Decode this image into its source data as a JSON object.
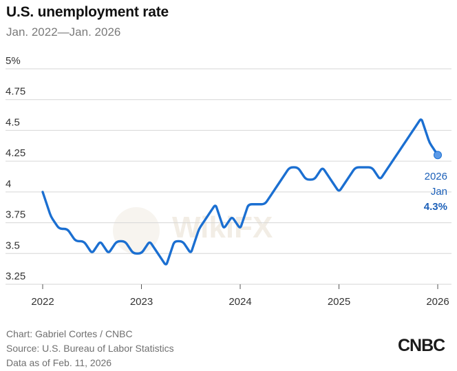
{
  "title": "U.S. unemployment rate",
  "subtitle": "Jan. 2022—Jan. 2026",
  "footer": {
    "credit": "Chart: Gabriel Cortes / CNBC",
    "source": "Source: U.S. Bureau of Labor Statistics",
    "date": "Data as of Feb. 11, 2026"
  },
  "logo": "CNBC",
  "watermark": "WikiFX",
  "colors": {
    "line": "#1b6fd1",
    "annotation": "#1b5fb8",
    "grid": "#d6d6d6",
    "axis_text": "#333333",
    "watermark": "#e8e0d0"
  },
  "chart_data": {
    "type": "line",
    "ylim": [
      3.25,
      5
    ],
    "xlim": [
      2022,
      2026
    ],
    "y_ticks": [
      {
        "value": 5,
        "label": "5%"
      },
      {
        "value": 4.75,
        "label": "4.75"
      },
      {
        "value": 4.5,
        "label": "4.5"
      },
      {
        "value": 4.25,
        "label": "4.25"
      },
      {
        "value": 4,
        "label": "4"
      },
      {
        "value": 3.75,
        "label": "3.75"
      },
      {
        "value": 3.5,
        "label": "3.5"
      },
      {
        "value": 3.25,
        "label": "3.25"
      }
    ],
    "x_ticks": [
      {
        "value": 2022,
        "label": "2022"
      },
      {
        "value": 2023,
        "label": "2023"
      },
      {
        "value": 2024,
        "label": "2024"
      },
      {
        "value": 2025,
        "label": "2025"
      },
      {
        "value": 2026,
        "label": "2026"
      }
    ],
    "series": [
      {
        "x": [
          "2022-01",
          "2022-02",
          "2022-03",
          "2022-04",
          "2022-05",
          "2022-06",
          "2022-07",
          "2022-08",
          "2022-09",
          "2022-10",
          "2022-11",
          "2022-12",
          "2023-01",
          "2023-02",
          "2023-03",
          "2023-04",
          "2023-05",
          "2023-06",
          "2023-07",
          "2023-08",
          "2023-09",
          "2023-10",
          "2023-11",
          "2023-12",
          "2024-01",
          "2024-02",
          "2024-03",
          "2024-04",
          "2024-05",
          "2024-06",
          "2024-07",
          "2024-08",
          "2024-09",
          "2024-10",
          "2024-11",
          "2024-12",
          "2025-01",
          "2025-02",
          "2025-03",
          "2025-04",
          "2025-05",
          "2025-06",
          "2025-07",
          "2025-08",
          "2025-09",
          "2025-10",
          "2025-11",
          "2025-12",
          "2026-01"
        ],
        "values": [
          4.0,
          3.8,
          3.7,
          3.7,
          3.6,
          3.6,
          3.5,
          3.6,
          3.5,
          3.6,
          3.6,
          3.5,
          3.5,
          3.6,
          3.5,
          3.4,
          3.6,
          3.6,
          3.5,
          3.7,
          3.8,
          3.9,
          3.7,
          3.8,
          3.7,
          3.9,
          3.9,
          3.9,
          4.0,
          4.1,
          4.2,
          4.2,
          4.1,
          4.1,
          4.2,
          4.1,
          4.0,
          4.1,
          4.2,
          4.2,
          4.2,
          4.1,
          4.2,
          4.3,
          4.4,
          4.5,
          4.6,
          4.4,
          4.3
        ]
      }
    ],
    "annotation": {
      "year": "2026",
      "month": "Jan",
      "value_label": "4.3%"
    },
    "grid": true,
    "legend": "none"
  }
}
